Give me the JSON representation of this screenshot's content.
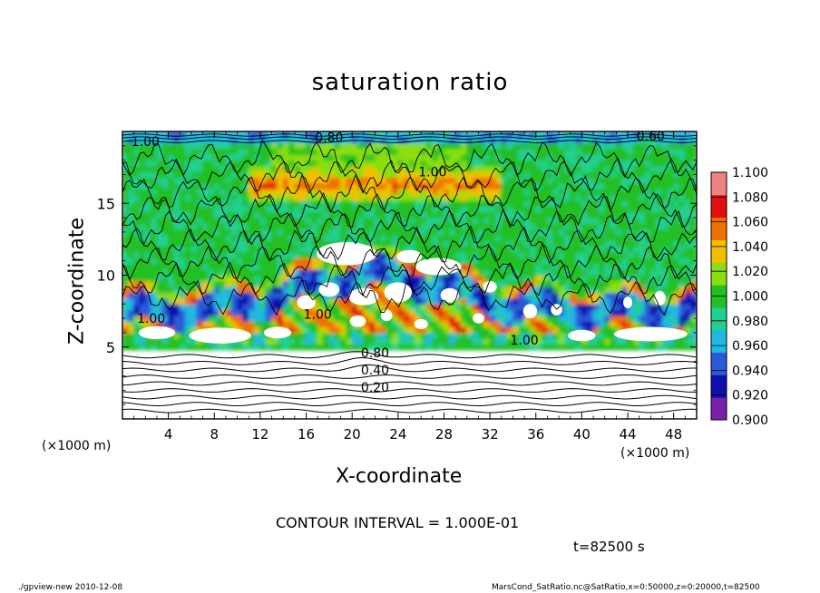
{
  "chart_data": {
    "type": "heatmap",
    "title": "saturation ratio",
    "xlabel": "X-coordinate",
    "ylabel": "Z-coordinate",
    "x_unit_left": "(×1000 m)",
    "x_unit_right": "(×1000 m)",
    "xlim": [
      0,
      50
    ],
    "ylim": [
      0,
      20
    ],
    "x_ticks": [
      4,
      8,
      12,
      16,
      20,
      24,
      28,
      32,
      36,
      40,
      44,
      48
    ],
    "x_tick_labels": [
      "4",
      "8",
      "12",
      "16",
      "20",
      "24",
      "28",
      "32",
      "36",
      "40",
      "44",
      "48"
    ],
    "y_ticks": [
      5,
      10,
      15
    ],
    "y_tick_labels": [
      "5",
      "10",
      "15"
    ],
    "colorbar": {
      "min": 0.9,
      "max": 1.1,
      "levels": [
        0.9,
        0.92,
        0.94,
        0.96,
        0.98,
        1.0,
        1.02,
        1.04,
        1.06,
        1.08,
        1.1
      ],
      "labels": [
        "0.900",
        "0.920",
        "0.940",
        "0.960",
        "0.980",
        "1.000",
        "1.020",
        "1.040",
        "1.060",
        "1.080",
        "1.100"
      ],
      "colors": [
        "#7a1fa8",
        "#1010b0",
        "#2a5ad8",
        "#20b8e0",
        "#20d090",
        "#22c022",
        "#8adf10",
        "#f0c000",
        "#f07000",
        "#e01010",
        "#f08080"
      ]
    },
    "contour_labels": [
      {
        "text": "0.20",
        "x": 22,
        "y": 2.2
      },
      {
        "text": "0.40",
        "x": 22,
        "y": 3.4
      },
      {
        "text": "0.80",
        "x": 22,
        "y": 4.6
      },
      {
        "text": "1.00",
        "x": 17,
        "y": 7.3
      },
      {
        "text": "1.00",
        "x": 27,
        "y": 17.2
      },
      {
        "text": "1.00",
        "x": 35,
        "y": 5.5
      },
      {
        "text": "0.80",
        "x": 18,
        "y": 19.6
      },
      {
        "text": "0.60",
        "x": 46,
        "y": 19.7
      },
      {
        "text": "1.00",
        "x": 2,
        "y": 19.3
      },
      {
        "text": "1.00",
        "x": 2.5,
        "y": 7.0
      }
    ],
    "contour_interval_text": "CONTOUR INTERVAL = 1.000E-01",
    "time_text": "t=82500  s"
  },
  "footer": {
    "left": "./gpview-new   2010-12-08",
    "right": "MarsCond_SatRatio.nc@SatRatio,x=0:50000,z=0:20000,t=82500"
  }
}
